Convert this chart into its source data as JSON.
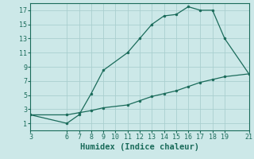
{
  "title": "",
  "xlabel": "Humidex (Indice chaleur)",
  "ylabel": "",
  "background_color": "#cce8e8",
  "grid_color": "#aacfcf",
  "line_color": "#1a6b5a",
  "curve1_x": [
    3,
    6,
    7,
    8,
    9,
    11,
    12,
    13,
    14,
    15,
    16,
    17,
    18,
    19,
    21
  ],
  "curve1_y": [
    2.2,
    1.0,
    2.2,
    5.2,
    8.5,
    11.0,
    13.0,
    15.0,
    16.2,
    16.4,
    17.5,
    17.0,
    17.0,
    13.0,
    8.0
  ],
  "curve2_x": [
    3,
    6,
    7,
    8,
    9,
    11,
    12,
    13,
    14,
    15,
    16,
    17,
    18,
    19,
    21
  ],
  "curve2_y": [
    2.2,
    2.2,
    2.5,
    2.8,
    3.2,
    3.6,
    4.2,
    4.8,
    5.2,
    5.6,
    6.2,
    6.8,
    7.2,
    7.6,
    8.0
  ],
  "xlim": [
    3,
    21
  ],
  "ylim": [
    0,
    18
  ],
  "xticks": [
    3,
    6,
    7,
    8,
    9,
    10,
    11,
    12,
    13,
    14,
    15,
    16,
    17,
    18,
    19,
    21
  ],
  "yticks": [
    1,
    3,
    5,
    7,
    9,
    11,
    13,
    15,
    17
  ],
  "tick_fontsize": 6,
  "xlabel_fontsize": 7.5
}
